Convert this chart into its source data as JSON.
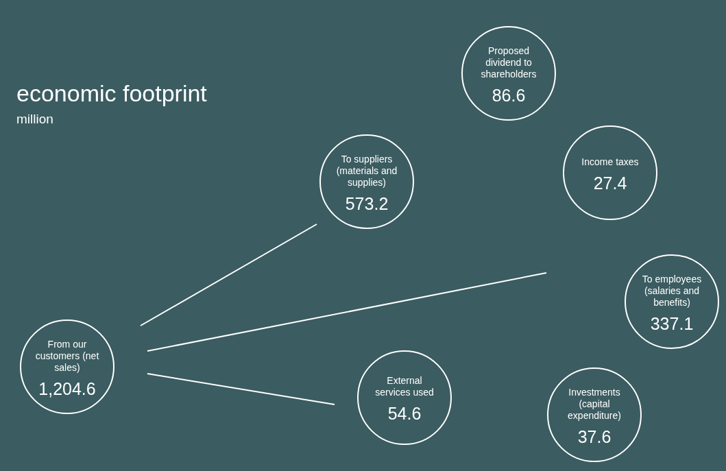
{
  "chart_data": {
    "type": "other",
    "title": "economic footprint",
    "subtitle": "million",
    "categories": [
      "Proposed dividend to shareholders",
      "To suppliers (materials and supplies)",
      "Income taxes",
      "To employees (salaries and benefits)",
      "From our customers (net sales)",
      "External services used",
      "Investments (capital expenditure)"
    ],
    "values": [
      86.6,
      573.2,
      27.4,
      337.1,
      1204.6,
      54.6,
      37.6
    ],
    "value_labels": [
      "86.6",
      "573.2",
      "27.4",
      "337.1",
      "1,204.6",
      "54.6",
      "37.6"
    ]
  }
}
